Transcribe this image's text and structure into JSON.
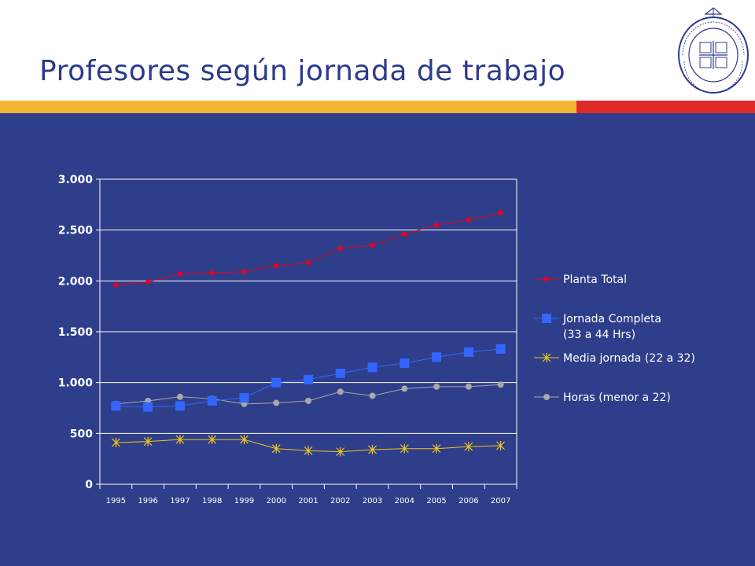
{
  "colors": {
    "title": "#2e3a8c",
    "panel": "#2e3e8a",
    "stripe_yellow": "#f7b534",
    "stripe_red": "#e02a2a",
    "grid": "#ffffff"
  },
  "title": "Profesores según jornada de trabajo",
  "seal_icon": "university-seal-icon",
  "chart_data": {
    "type": "line",
    "title": "",
    "xlabel": "",
    "ylabel": "",
    "ylim": [
      0,
      3000
    ],
    "yticks": [
      0,
      500,
      1000,
      1500,
      2000,
      2500,
      3000
    ],
    "ytick_labels": [
      "0",
      "500",
      "1.000",
      "1.500",
      "2.000",
      "2.500",
      "3.000"
    ],
    "grid": "horizontal",
    "legend_position": "right",
    "categories": [
      "1995",
      "1996",
      "1997",
      "1998",
      "1999",
      "2000",
      "2001",
      "2002",
      "2003",
      "2004",
      "2005",
      "2006",
      "2007"
    ],
    "series": [
      {
        "name": "Planta Total",
        "label_lines": [
          "Planta Total"
        ],
        "color": "#e8001c",
        "marker": "diamond",
        "values": [
          1960,
          1990,
          2070,
          2080,
          2090,
          2150,
          2180,
          2320,
          2350,
          2460,
          2550,
          2600,
          2670
        ]
      },
      {
        "name": "Jornada Completa (33 a 44 Hrs)",
        "label_lines": [
          "Jornada Completa",
          "(33 a 44 Hrs)"
        ],
        "color": "#3366ff",
        "marker": "square",
        "values": [
          770,
          760,
          770,
          820,
          850,
          1000,
          1030,
          1090,
          1150,
          1190,
          1250,
          1300,
          1330
        ]
      },
      {
        "name": "Media jornada (22 a 32)",
        "label_lines": [
          "Media jornada (22 a 32)"
        ],
        "color": "#f0c419",
        "marker": "asterisk",
        "values": [
          410,
          420,
          440,
          440,
          440,
          350,
          330,
          320,
          340,
          350,
          350,
          370,
          380
        ]
      },
      {
        "name": "Horas (menor a 22)",
        "label_lines": [
          "Horas (menor a 22)"
        ],
        "color": "#a8a8a8",
        "marker": "circle",
        "values": [
          790,
          820,
          860,
          840,
          790,
          800,
          820,
          910,
          870,
          940,
          960,
          960,
          980
        ]
      }
    ]
  }
}
